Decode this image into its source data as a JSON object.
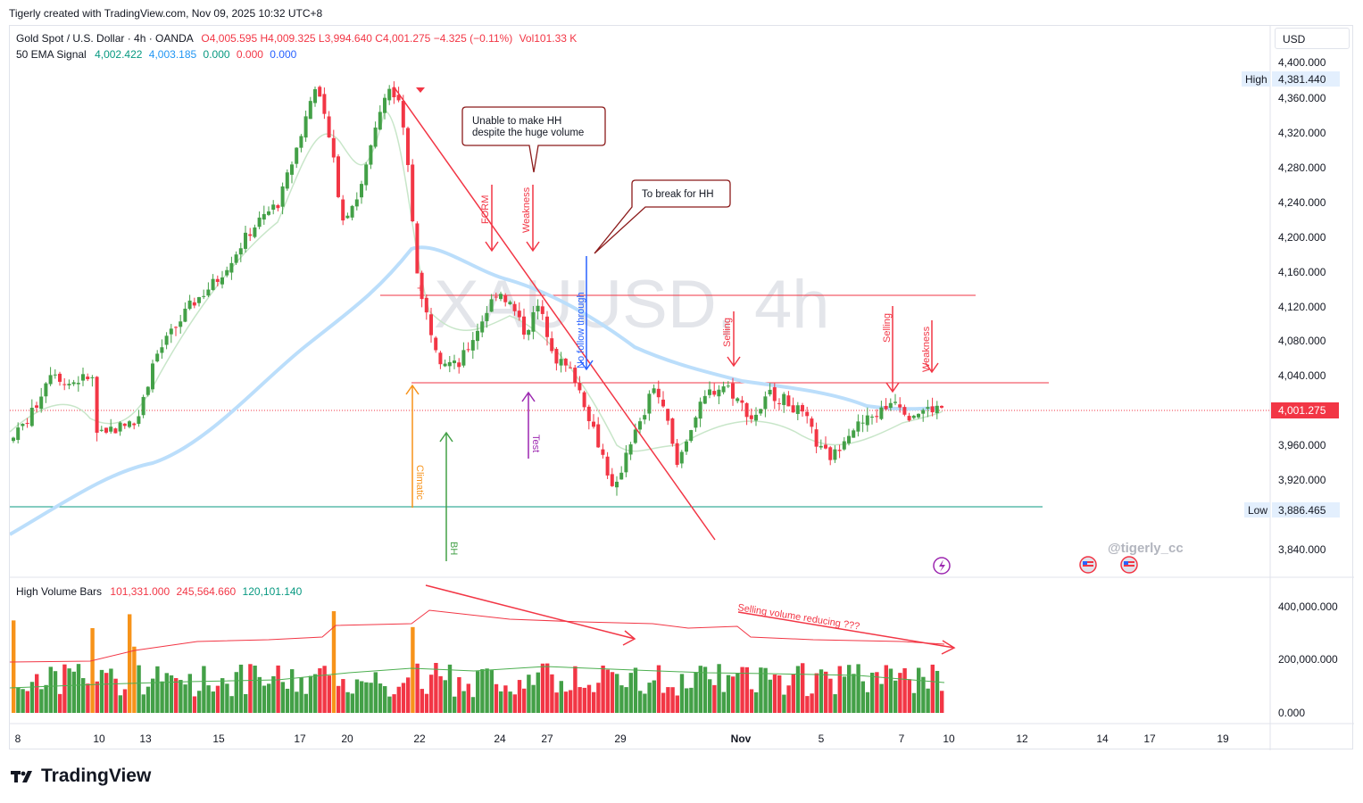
{
  "header": {
    "credit": "Tigerly created with TradingView.com, Nov 09, 2025 10:32 UTC+8"
  },
  "legend": {
    "symbol": "Gold Spot / U.S. Dollar · 4h · OANDA",
    "open": "O4,005.595",
    "high": "H4,009.325",
    "low": "L3,994.640",
    "close": "C4,001.275",
    "change": "−4.325 (−0.11%)",
    "vol": "Vol101.33 K",
    "ema_label": "50 EMA Signal",
    "ema_v1": "4,002.422",
    "ema_v2": "4,003.185",
    "ema_v3": "0.000",
    "ema_v4": "0.000",
    "ema_v5": "0.000",
    "vol_label": "High Volume Bars",
    "vol_v1": "101,331.000",
    "vol_v2": "245,564.660",
    "vol_v3": "120,101.140"
  },
  "currency": "USD",
  "watermark": "XAUUSD, 4h",
  "handle": "@tigerly_cc",
  "price_axis": {
    "ticks": [
      "4,400.000",
      "4,360.000",
      "4,320.000",
      "4,280.000",
      "4,240.000",
      "4,200.000",
      "4,160.000",
      "4,120.000",
      "4,080.000",
      "4,040.000",
      "3,960.000",
      "3,920.000",
      "3,840.000"
    ],
    "high_label": "High",
    "high_value": "4,381.440",
    "low_label": "Low",
    "low_value": "3,886.465",
    "last_value": "4,001.275"
  },
  "volume_axis": {
    "ticks": [
      "400,000.000",
      "200,000.000",
      "0.000"
    ]
  },
  "time_axis": {
    "ticks": [
      "8",
      "10",
      "13",
      "15",
      "17",
      "20",
      "22",
      "24",
      "27",
      "29",
      "Nov",
      "5",
      "7",
      "10",
      "12",
      "14",
      "17",
      "19"
    ]
  },
  "annotations": {
    "box1_line1": "Unable to make HH",
    "box1_line2": "despite the huge volume",
    "box2": "To break for HH",
    "form": "FORM",
    "weakness1": "Weakness",
    "no_follow": "No follow through",
    "selling1": "Selling",
    "selling2": "Selling",
    "weakness2": "Weakness",
    "climatic": "Climatic",
    "bh": "BH",
    "test": "Test",
    "vol_note": "Selling volume reducing ???"
  },
  "logo": "TradingView",
  "colors": {
    "up": "#43a047",
    "down": "#f23645",
    "climax": "#f7931a",
    "ema": "#bbdefb",
    "accent": "#2962ff"
  },
  "chart_data": {
    "type": "candlestick",
    "title": "Gold Spot / U.S. Dollar · 4h · OANDA",
    "y_range": [
      3820,
      4420
    ],
    "x_range": [
      "Oct 8 2025",
      "Nov 19 2025"
    ],
    "key_levels": {
      "high": 4381.44,
      "low": 3886.465,
      "last": 4001.275,
      "resistance": 4131,
      "support": 4030
    },
    "ohlc_path": [
      [
        "Oct 8",
        3965,
        4005
      ],
      [
        "Oct 9",
        4005,
        4060
      ],
      [
        "Oct 10",
        4060,
        3980
      ],
      [
        "Oct 13",
        3980,
        4110
      ],
      [
        "Oct 15",
        4110,
        4200
      ],
      [
        "Oct 16",
        4200,
        4260
      ],
      [
        "Oct 17",
        4260,
        4379
      ],
      [
        "Oct 17",
        4379,
        4220
      ],
      [
        "Oct 20",
        4220,
        4260
      ],
      [
        "Oct 20",
        4260,
        4381
      ],
      [
        "Oct 21",
        4381,
        4300
      ],
      [
        "Oct 21",
        4300,
        4130
      ],
      [
        "Oct 22",
        4130,
        4040
      ],
      [
        "Oct 23",
        4040,
        4145
      ],
      [
        "Oct 24",
        4145,
        4100
      ],
      [
        "Oct 27",
        4100,
        4075
      ],
      [
        "Oct 28",
        4075,
        3935
      ],
      [
        "Oct 28",
        3935,
        3890
      ],
      [
        "Oct 29",
        3890,
        4030
      ],
      [
        "Oct 30",
        4030,
        3930
      ],
      [
        "Oct 31",
        3930,
        4025
      ],
      [
        "Nov 3",
        4025,
        3990
      ],
      [
        "Nov 4",
        3990,
        3940
      ],
      [
        "Nov 5",
        3940,
        3980
      ],
      [
        "Nov 6",
        3980,
        4010
      ],
      [
        "Nov 7",
        4010,
        3990
      ],
      [
        "Nov 7",
        3990,
        4005
      ],
      [
        "Nov 9",
        4005,
        4001
      ]
    ],
    "volume_range": [
      0,
      480000
    ]
  }
}
